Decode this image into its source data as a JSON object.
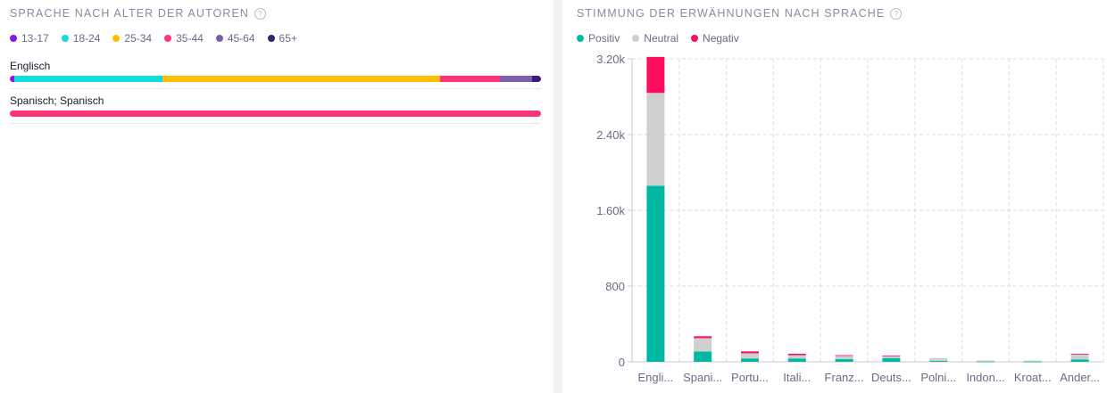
{
  "left_panel": {
    "title": "SPRACHE NACH ALTER DER AUTOREN",
    "help": "?",
    "legend": [
      {
        "label": "13-17",
        "color": "#8a16e8"
      },
      {
        "label": "18-24",
        "color": "#10dde0"
      },
      {
        "label": "25-34",
        "color": "#ffbf00"
      },
      {
        "label": "35-44",
        "color": "#ff3377"
      },
      {
        "label": "45-64",
        "color": "#7b5fa8"
      },
      {
        "label": "65+",
        "color": "#3b1e7a"
      }
    ]
  },
  "right_panel": {
    "title": "STIMMUNG DER ERWÄHNUNGEN NACH SPRACHE",
    "help": "?",
    "legend": [
      {
        "label": "Positiv",
        "color": "#00b8a4"
      },
      {
        "label": "Neutral",
        "color": "#cfcfcf"
      },
      {
        "label": "Negativ",
        "color": "#ff0d5f"
      }
    ]
  },
  "chart_data": [
    {
      "type": "bar",
      "orientation": "horizontal-stacked-percent",
      "title": "SPRACHE NACH ALTER DER AUTOREN",
      "categories": [
        "Englisch",
        "Spanisch; Spanisch"
      ],
      "series": [
        {
          "name": "13-17",
          "color": "#8a16e8",
          "values": [
            0.8,
            0
          ]
        },
        {
          "name": "18-24",
          "color": "#10dde0",
          "values": [
            28.0,
            0
          ]
        },
        {
          "name": "25-34",
          "color": "#ffbf00",
          "values": [
            52.2,
            0
          ]
        },
        {
          "name": "35-44",
          "color": "#ff3377",
          "values": [
            11.3,
            100
          ]
        },
        {
          "name": "45-64",
          "color": "#7b5fa8",
          "values": [
            6.0,
            0
          ]
        },
        {
          "name": "65+",
          "color": "#3b1e7a",
          "values": [
            1.7,
            0
          ]
        }
      ]
    },
    {
      "type": "bar",
      "orientation": "vertical-stacked",
      "title": "STIMMUNG DER ERWÄHNUNGEN NACH SPRACHE",
      "categories": [
        "Engli...",
        "Spani...",
        "Portu...",
        "Itali...",
        "Franz...",
        "Deuts...",
        "Polni...",
        "Indon...",
        "Kroat...",
        "Ander..."
      ],
      "series": [
        {
          "name": "Positiv",
          "color": "#00b8a4",
          "values": [
            1860,
            110,
            35,
            35,
            30,
            40,
            10,
            3,
            3,
            25
          ]
        },
        {
          "name": "Neutral",
          "color": "#cfcfcf",
          "values": [
            980,
            140,
            55,
            35,
            35,
            20,
            30,
            12,
            10,
            55
          ]
        },
        {
          "name": "Negativ",
          "color": "#ff0d5f",
          "values": [
            380,
            20,
            20,
            15,
            5,
            5,
            0,
            0,
            0,
            5
          ]
        }
      ],
      "yticks": [
        "0",
        "800",
        "1.60k",
        "2.40k",
        "3.20k"
      ],
      "ytick_values": [
        0,
        800,
        1600,
        2400,
        3200
      ],
      "ylim": [
        0,
        3200
      ],
      "grid": true
    }
  ]
}
